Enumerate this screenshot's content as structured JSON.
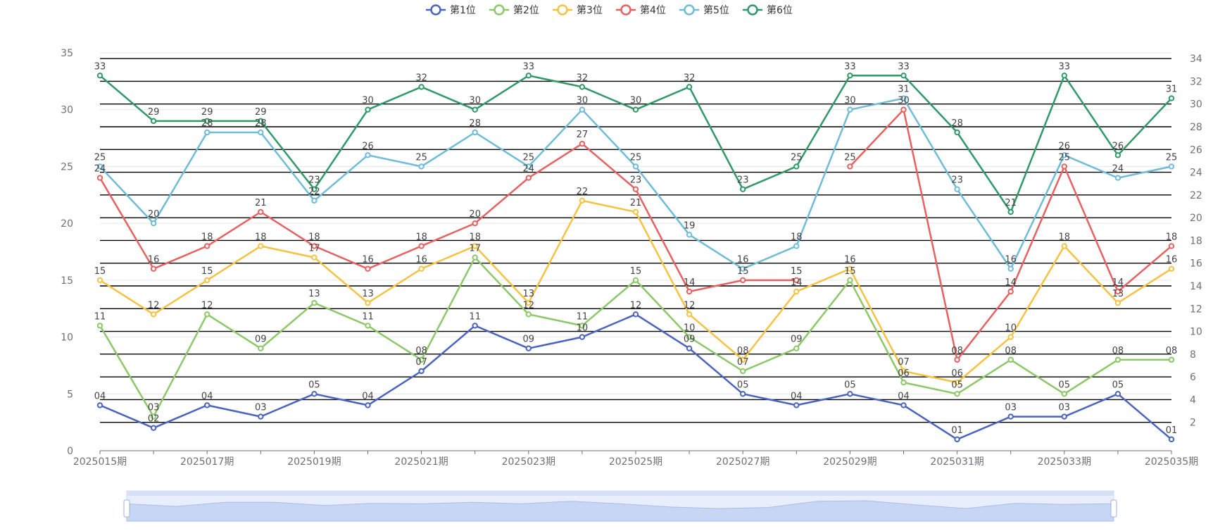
{
  "chart_data": {
    "type": "line",
    "categories": [
      "2025015期",
      "2025016期",
      "2025017期",
      "2025018期",
      "2025019期",
      "2025020期",
      "2025021期",
      "2025022期",
      "2025023期",
      "2025024期",
      "2025025期",
      "2025026期",
      "2025027期",
      "2025028期",
      "2025029期",
      "2025030期",
      "2025031期",
      "2025032期",
      "2025033期",
      "2025034期",
      "2025035期"
    ],
    "x_tick_labels": [
      "2025015期",
      "2025017期",
      "2025019期",
      "2025021期",
      "2025023期",
      "2025025期",
      "2025027期",
      "2025029期",
      "2025031期",
      "2025033期",
      "2025035期"
    ],
    "series": [
      {
        "name": "第1位",
        "color": "#4a63c0",
        "values": [
          4,
          2,
          4,
          3,
          5,
          4,
          7,
          11,
          9,
          10,
          12,
          9,
          5,
          4,
          5,
          4,
          1,
          3,
          3,
          5,
          1
        ]
      },
      {
        "name": "第2位",
        "color": "#8cc868",
        "values": [
          11,
          3,
          12,
          9,
          13,
          11,
          8,
          17,
          12,
          11,
          15,
          10,
          7,
          9,
          15,
          6,
          5,
          8,
          5,
          8,
          8
        ]
      },
      {
        "name": "第3位",
        "color": "#f5c242",
        "values": [
          15,
          12,
          15,
          18,
          17,
          13,
          16,
          18,
          13,
          22,
          21,
          12,
          8,
          14,
          16,
          7,
          6,
          10,
          18,
          13,
          16
        ]
      },
      {
        "name": "第4位",
        "color": "#e86060",
        "values": [
          24,
          16,
          18,
          21,
          18,
          16,
          18,
          20,
          24,
          27,
          23,
          14,
          15,
          15,
          25,
          30,
          8,
          14,
          25,
          14,
          18
        ]
      },
      {
        "name": "第5位",
        "color": "#6ebcd8",
        "values": [
          25,
          20,
          28,
          28,
          22,
          26,
          25,
          28,
          25,
          30,
          25,
          19,
          16,
          18,
          30,
          31,
          23,
          16,
          26,
          24,
          25
        ]
      },
      {
        "name": "第6位",
        "color": "#2f9a68",
        "values": [
          33,
          29,
          29,
          29,
          23,
          30,
          32,
          30,
          33,
          32,
          30,
          32,
          23,
          25,
          33,
          33,
          28,
          21,
          33,
          26,
          31
        ]
      }
    ],
    "gap_after_index": {
      "第4位": [
        13
      ]
    },
    "y_left": {
      "min": 0,
      "max": 35,
      "ticks": [
        0,
        5,
        10,
        15,
        20,
        25,
        30,
        35
      ]
    },
    "y_right": {
      "ticks": [
        2,
        4,
        6,
        8,
        10,
        12,
        14,
        16,
        18,
        20,
        22,
        24,
        26,
        28,
        30,
        32,
        34
      ]
    },
    "legend_position": "top-center",
    "data_label_format": "two-digit"
  }
}
